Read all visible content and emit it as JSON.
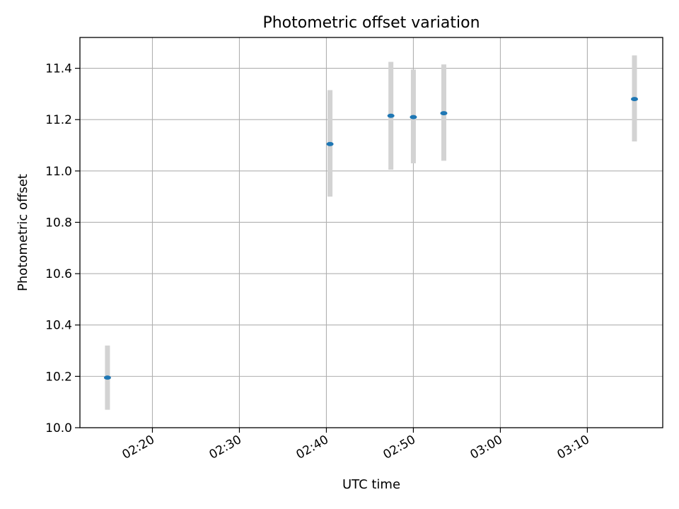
{
  "chart_data": {
    "type": "scatter",
    "title": "Photometric offset variation",
    "xlabel": "UTC time",
    "ylabel": "Photometric offset",
    "xlim": [
      "02:11:40",
      "03:18:40"
    ],
    "ylim": [
      10.0,
      11.52
    ],
    "grid": true,
    "x_ticks": [
      "02:20",
      "02:30",
      "02:40",
      "02:50",
      "03:00",
      "03:10"
    ],
    "y_ticks": [
      "10.0",
      "10.2",
      "10.4",
      "10.6",
      "10.8",
      "11.0",
      "11.2",
      "11.4"
    ],
    "points": [
      {
        "x": "02:14:50",
        "y": 10.195,
        "yerr_low": 10.07,
        "yerr_high": 10.32
      },
      {
        "x": "02:40:25",
        "y": 11.105,
        "yerr_low": 10.9,
        "yerr_high": 11.315
      },
      {
        "x": "02:47:25",
        "y": 11.215,
        "yerr_low": 11.005,
        "yerr_high": 11.425
      },
      {
        "x": "02:50:00",
        "y": 11.21,
        "yerr_low": 11.03,
        "yerr_high": 11.395
      },
      {
        "x": "02:53:30",
        "y": 11.225,
        "yerr_low": 11.04,
        "yerr_high": 11.415
      },
      {
        "x": "03:15:25",
        "y": 11.28,
        "yerr_low": 11.115,
        "yerr_high": 11.45
      }
    ],
    "colors": {
      "marker": "#1f77b4",
      "errorbar": "#d3d3d3",
      "grid": "#b0b0b0"
    }
  }
}
